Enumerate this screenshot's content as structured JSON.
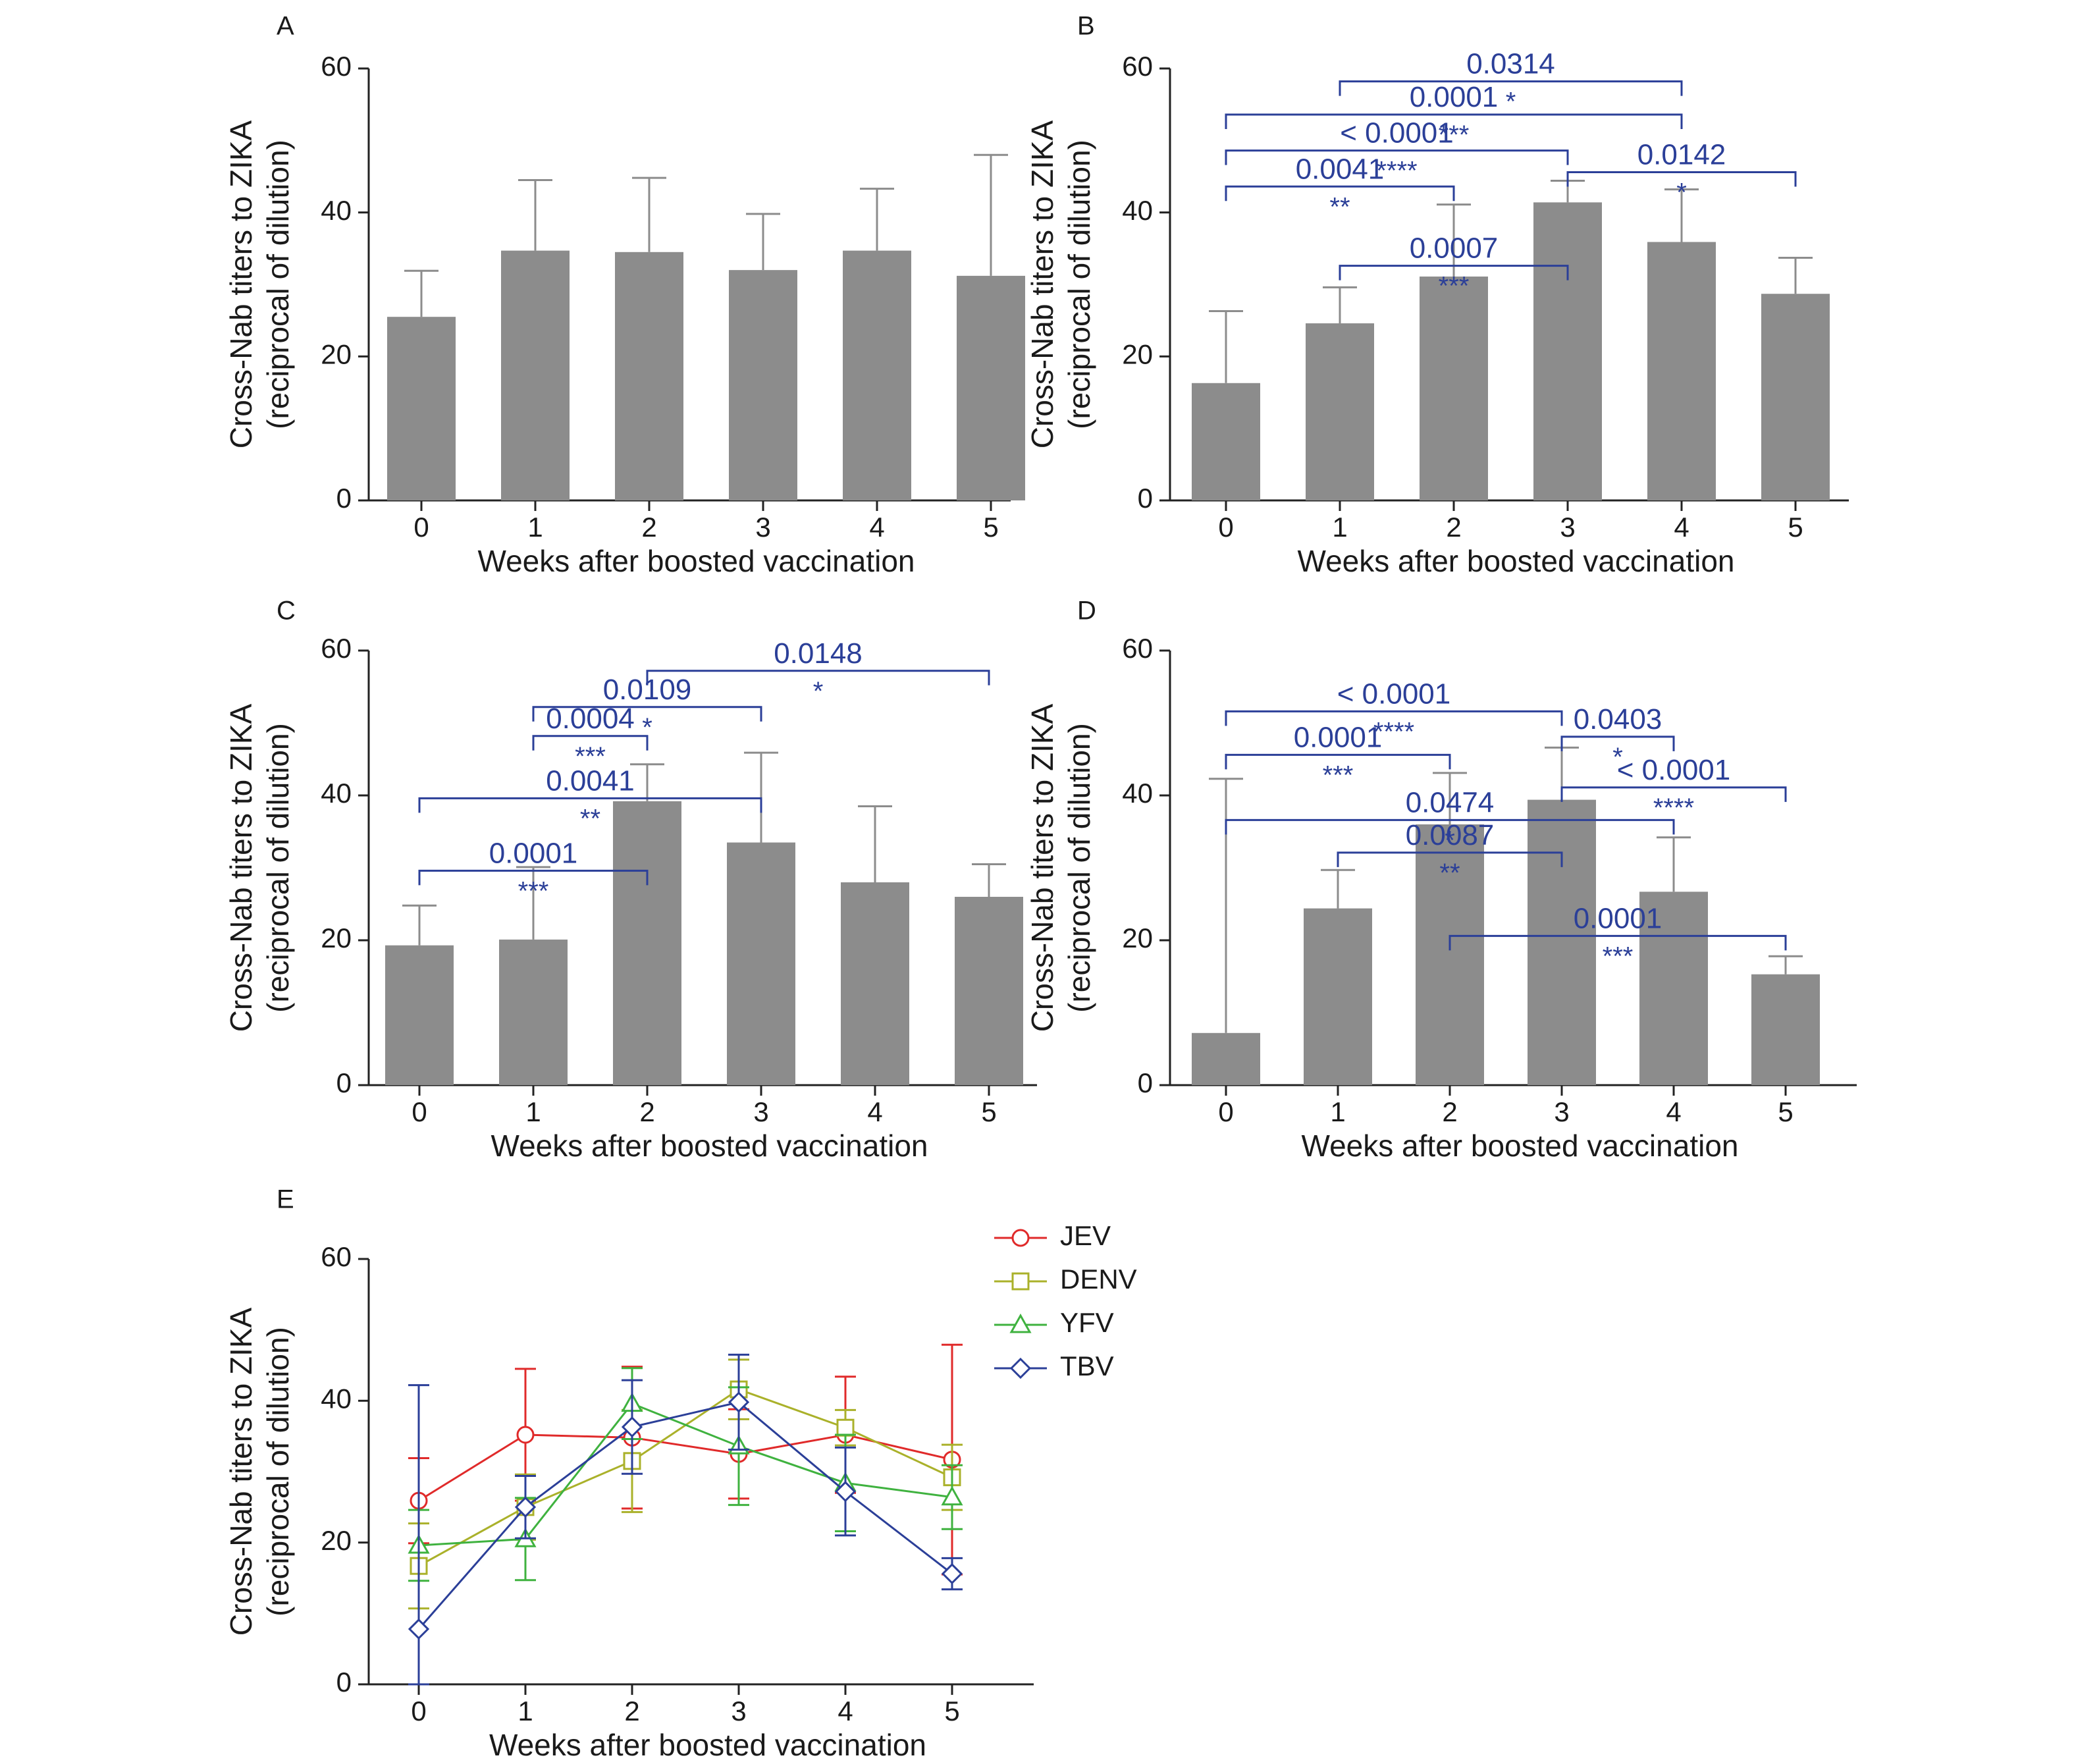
{
  "chart_data": [
    {
      "panel": "A",
      "type": "bar",
      "categories": [
        "0",
        "1",
        "2",
        "3",
        "4",
        "5"
      ],
      "values": [
        25.5,
        34.7,
        34.5,
        32,
        34.7,
        31.2
      ],
      "error_upper": [
        31.9,
        44.5,
        44.8,
        39.8,
        43.3,
        48
      ],
      "xlabel": "Weeks after boosted vaccination",
      "ylabel": [
        "Cross-Nab titers to ZIKA",
        "(reciprocal of dilution)"
      ],
      "ylim": [
        0,
        60
      ],
      "yticks": [
        0,
        20,
        40,
        60
      ],
      "bar_color": "#8c8c8c",
      "significance": []
    },
    {
      "panel": "B",
      "type": "bar",
      "categories": [
        "0",
        "1",
        "2",
        "3",
        "4",
        "5"
      ],
      "values": [
        16.3,
        24.6,
        31.1,
        41.4,
        35.9,
        28.7
      ],
      "error_upper": [
        26.3,
        29.6,
        41.1,
        44.4,
        43.2,
        33.7
      ],
      "xlabel": "Weeks after boosted vaccination",
      "ylabel": [
        "Cross-Nab titers to ZIKA",
        "(reciprocal of dilution)"
      ],
      "ylim": [
        0,
        60
      ],
      "yticks": [
        0,
        20,
        40,
        60
      ],
      "bar_color": "#8c8c8c",
      "significance": [
        {
          "from": 1,
          "to": 4,
          "p": "0.0314",
          "stars": "*",
          "y": 58.2
        },
        {
          "from": 0,
          "to": 4,
          "p": "0.0001",
          "stars": "***",
          "y": 53.6
        },
        {
          "from": 0,
          "to": 3,
          "p": "< 0.0001",
          "stars": "****",
          "y": 48.6
        },
        {
          "from": 3,
          "to": 5,
          "p": "0.0142",
          "stars": "*",
          "y": 45.6
        },
        {
          "from": 0,
          "to": 2,
          "p": "0.0041",
          "stars": "**",
          "y": 43.6
        },
        {
          "from": 1,
          "to": 3,
          "p": "0.0007",
          "stars": "***",
          "y": 32.6
        }
      ]
    },
    {
      "panel": "C",
      "type": "bar",
      "categories": [
        "0",
        "1",
        "2",
        "3",
        "4",
        "5"
      ],
      "values": [
        19.3,
        20.1,
        39.2,
        33.5,
        28,
        26
      ],
      "error_upper": [
        24.8,
        30.1,
        44.3,
        45.9,
        38.5,
        30.5
      ],
      "xlabel": "Weeks after boosted vaccination",
      "ylabel": [
        "Cross-Nab titers to ZIKA",
        "(reciprocal of dilution)"
      ],
      "ylim": [
        0,
        60
      ],
      "yticks": [
        0,
        20,
        40,
        60
      ],
      "bar_color": "#8c8c8c",
      "significance": [
        {
          "from": 2,
          "to": 5,
          "p": "0.0148",
          "stars": "*",
          "y": 57.2
        },
        {
          "from": 1,
          "to": 3,
          "p": "0.0109",
          "stars": "*",
          "y": 52.2
        },
        {
          "from": 1,
          "to": 2,
          "p": "0.0004",
          "stars": "***",
          "y": 48.2
        },
        {
          "from": 0,
          "to": 3,
          "p": "0.0041",
          "stars": "**",
          "y": 39.6
        },
        {
          "from": 0,
          "to": 2,
          "p": "0.0001",
          "stars": "***",
          "y": 29.6
        }
      ]
    },
    {
      "panel": "D",
      "type": "bar",
      "categories": [
        "0",
        "1",
        "2",
        "3",
        "4",
        "5"
      ],
      "values": [
        7.2,
        24.4,
        36,
        39.4,
        26.7,
        15.3
      ],
      "error_upper": [
        42.3,
        29.7,
        43.1,
        46.6,
        34.2,
        17.8
      ],
      "xlabel": "Weeks after boosted vaccination",
      "ylabel": [
        "Cross-Nab titers to ZIKA",
        "(reciprocal of dilution)"
      ],
      "ylim": [
        0,
        60
      ],
      "yticks": [
        0,
        20,
        40,
        60
      ],
      "bar_color": "#8c8c8c",
      "significance": [
        {
          "from": 0,
          "to": 3,
          "p": "< 0.0001",
          "stars": "****",
          "y": 51.6
        },
        {
          "from": 3,
          "to": 4,
          "p": "0.0403",
          "stars": "*",
          "y": 48.1
        },
        {
          "from": 0,
          "to": 2,
          "p": "0.0001",
          "stars": "***",
          "y": 45.6
        },
        {
          "from": 3,
          "to": 5,
          "p": "< 0.0001",
          "stars": "****",
          "y": 41.1
        },
        {
          "from": 0,
          "to": 4,
          "p": "0.0474",
          "stars": "*",
          "y": 36.6
        },
        {
          "from": 1,
          "to": 3,
          "p": "0.0087",
          "stars": "**",
          "y": 32.1
        },
        {
          "from": 2,
          "to": 5,
          "p": "0.0001",
          "stars": "***",
          "y": 20.6
        }
      ]
    },
    {
      "panel": "E",
      "type": "line",
      "x": [
        0,
        1,
        2,
        3,
        4,
        5
      ],
      "xlabel": "Weeks after boosted vaccination",
      "ylabel": [
        "Cross-Nab titers to ZIKA",
        "(reciprocal of dilution)"
      ],
      "ylim": [
        0,
        60
      ],
      "yticks": [
        0,
        20,
        40,
        60
      ],
      "legend_position": "top-right",
      "series": [
        {
          "name": "JEV",
          "marker": "circle",
          "color": "#e02a2a",
          "values": [
            25.9,
            35.2,
            34.8,
            32.5,
            35.2,
            31.7
          ],
          "error": [
            6,
            9.3,
            10,
            6.3,
            8.2,
            16.2
          ]
        },
        {
          "name": "DENV",
          "marker": "square",
          "color": "#aab12a",
          "values": [
            16.7,
            25,
            31.5,
            41.6,
            36.2,
            29.2
          ],
          "error": [
            6,
            4.6,
            7.2,
            4.2,
            2.5,
            4.6
          ]
        },
        {
          "name": "YFV",
          "marker": "triangle",
          "color": "#3fb23f",
          "values": [
            19.6,
            20.5,
            39.6,
            33.6,
            28.4,
            26.4
          ],
          "error": [
            5,
            5.8,
            5,
            8.3,
            6.8,
            4.5
          ]
        },
        {
          "name": "TBV",
          "marker": "diamond",
          "color": "#2b3f98",
          "values": [
            7.8,
            25,
            36.3,
            39.8,
            27.2,
            15.6
          ],
          "error": [
            34.4,
            4.4,
            6.6,
            6.7,
            6.2,
            2.2
          ]
        }
      ]
    }
  ]
}
